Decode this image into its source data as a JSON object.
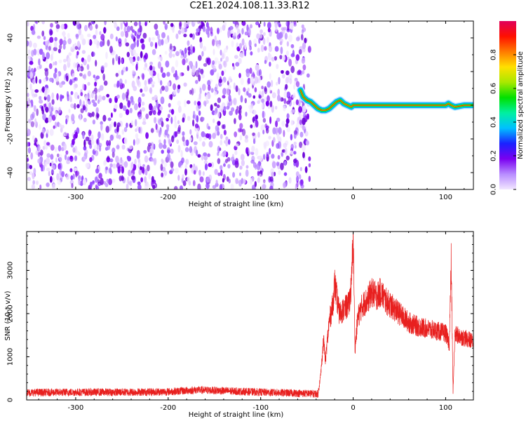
{
  "title": "C2E1.2024.108.11.33.R12",
  "colors": {
    "snr_line": "#e8201f",
    "noise_purple": "#7a00f0",
    "colorbar": [
      "#f2e6ff",
      "#b88cff",
      "#7a00f0",
      "#1a22ff",
      "#00c0ff",
      "#00f0a0",
      "#00e000",
      "#a8e800",
      "#ffe000",
      "#ff7a00",
      "#ff1000",
      "#e0005a"
    ]
  },
  "chart_data": [
    {
      "type": "heatmap",
      "xlabel": "Height of straight line (km)",
      "ylabel": "Frequency (Hz)",
      "xlim": [
        -353,
        130
      ],
      "ylim": [
        -50,
        50
      ],
      "xticks": [
        "-300",
        "-200",
        "-100",
        "0",
        "100"
      ],
      "xtick_values": [
        -300,
        -200,
        -100,
        0,
        100
      ],
      "yticks": [
        "-40",
        "-20",
        "0",
        "20",
        "40"
      ],
      "ytick_values": [
        -40,
        -20,
        0,
        20,
        40
      ],
      "noise_region_x": [
        -353,
        -50
      ],
      "signal_trace": {
        "x": [
          -57,
          -54,
          -50,
          -46,
          -42,
          -38,
          -34,
          -30,
          -26,
          -22,
          -18,
          -14,
          -10,
          -6,
          -2,
          0,
          10,
          30,
          50,
          70,
          90,
          100,
          103,
          106,
          110,
          120,
          130
        ],
        "y": [
          9,
          5,
          3,
          2,
          0,
          -2,
          -3,
          -3,
          -2,
          0,
          2,
          3,
          1,
          0,
          -1,
          0,
          0,
          0,
          0,
          0,
          0,
          0,
          1,
          0,
          -1,
          0,
          0
        ]
      },
      "colorbar": {
        "label": "Normalized spectral amplitude",
        "ticks": [
          "0.0",
          "0.2",
          "0.4",
          "0.6",
          "0.8"
        ],
        "tick_values": [
          0.0,
          0.2,
          0.4,
          0.6,
          0.8
        ],
        "range": [
          0,
          1
        ]
      }
    },
    {
      "type": "line",
      "xlabel": "Height of straight line (km)",
      "ylabel": "SNR (10 * v/v)",
      "xlim": [
        -353,
        130
      ],
      "ylim": [
        0,
        3900
      ],
      "xticks": [
        "-300",
        "-200",
        "-100",
        "0",
        "100"
      ],
      "xtick_values": [
        -300,
        -200,
        -100,
        0,
        100
      ],
      "yticks": [
        "0",
        "1000",
        "2000",
        "3000"
      ],
      "ytick_values": [
        0,
        1000,
        2000,
        3000
      ],
      "series": [
        {
          "x": [
            -353,
            -300,
            -250,
            -200,
            -170,
            -150,
            -100,
            -50,
            -38,
            -35,
            -32,
            -30,
            -26,
            -22,
            -20,
            -15,
            -10,
            -5,
            -2,
            0,
            2,
            5,
            10,
            15,
            20,
            25,
            30,
            35,
            40,
            50,
            60,
            70,
            80,
            90,
            100,
            104,
            106,
            108,
            110,
            113,
            118,
            125,
            130
          ],
          "values": [
            170,
            180,
            180,
            190,
            230,
            220,
            180,
            150,
            140,
            600,
            1400,
            900,
            1800,
            2200,
            2700,
            2000,
            2100,
            2200,
            2600,
            3800,
            1200,
            1900,
            2200,
            2300,
            2500,
            2400,
            2500,
            2300,
            2200,
            2000,
            1800,
            1700,
            1650,
            1600,
            1550,
            1300,
            3200,
            200,
            1500,
            1500,
            1450,
            1400,
            1350
          ]
        }
      ]
    }
  ]
}
